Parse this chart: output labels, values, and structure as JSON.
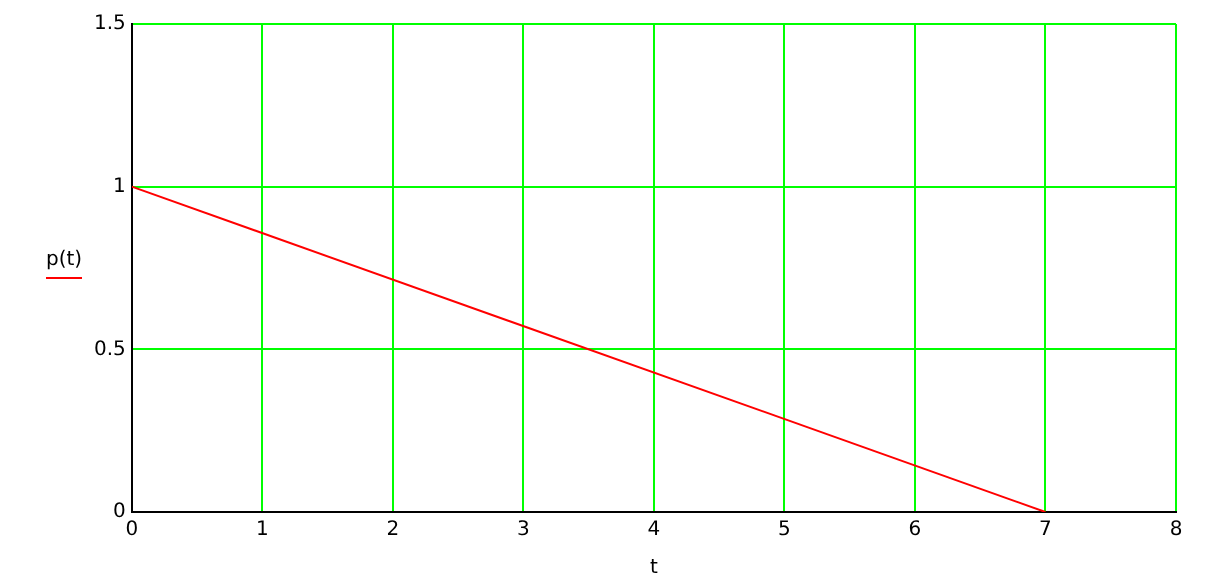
{
  "chart_data": {
    "type": "line",
    "xlabel": "t",
    "ylabel": "p(t)",
    "x": [
      0,
      7
    ],
    "series": [
      {
        "color": "#ff0000",
        "values": [
          1,
          0
        ]
      }
    ],
    "xlim": [
      0,
      8
    ],
    "xticks": [
      0,
      1,
      2,
      3,
      4,
      5,
      6,
      7,
      8
    ],
    "ylim": [
      0,
      1.5
    ],
    "yticks": [
      0,
      0.5,
      1,
      1.5
    ],
    "grid": true,
    "marker": "none",
    "line_style": "solid",
    "legend": false
  }
}
